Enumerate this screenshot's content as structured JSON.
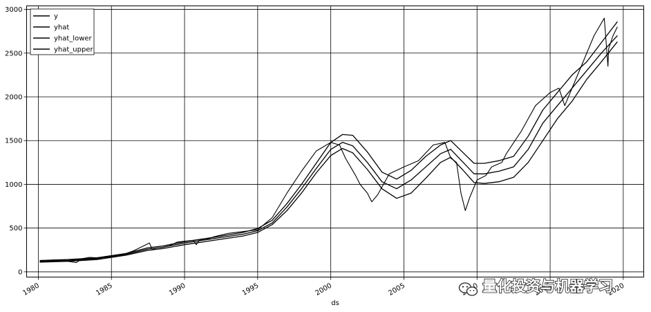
{
  "chart_data": {
    "type": "line",
    "xlabel": "ds",
    "ylabel": "",
    "xlim": [
      1979.2,
      2021.4
    ],
    "ylim": [
      -60,
      3040
    ],
    "x_ticks": [
      1980,
      1985,
      1990,
      1995,
      2000,
      2005,
      2010,
      2015,
      2020
    ],
    "x_tick_labels": [
      "1980",
      "1985",
      "1990",
      "1995",
      "2000",
      "2005",
      "2010",
      "2015",
      "2020"
    ],
    "y_ticks": [
      0,
      500,
      1000,
      1500,
      2000,
      2500,
      3000
    ],
    "y_tick_labels": [
      "0",
      "500",
      "1000",
      "1500",
      "2000",
      "2500",
      "3000"
    ],
    "grid": true,
    "legend": {
      "position": "top-left",
      "entries": [
        "y",
        "yhat",
        "yhat_lower",
        "yhat_upper"
      ]
    },
    "series": [
      {
        "name": "y",
        "x": [
          1980.1,
          1980.5,
          1981.0,
          1981.6,
          1982.0,
          1982.6,
          1983.0,
          1983.5,
          1984.0,
          1984.6,
          1985.0,
          1985.5,
          1986.0,
          1986.5,
          1987.0,
          1987.6,
          1987.8,
          1988.0,
          1988.5,
          1989.0,
          1989.5,
          1990.0,
          1990.6,
          1990.8,
          1991.0,
          1991.5,
          1992.0,
          1993.0,
          1994.0,
          1995.0,
          1996.0,
          1997.0,
          1998.0,
          1999.0,
          2000.0,
          2000.6,
          2001.0,
          2001.7,
          2002.0,
          2002.5,
          2002.8,
          2003.2,
          2004.0,
          2005.0,
          2006.0,
          2007.0,
          2007.8,
          2008.2,
          2008.6,
          2008.9,
          2009.2,
          2009.5,
          2010.0,
          2010.6,
          2011.0,
          2011.7,
          2012.0,
          2013.0,
          2014.0,
          2015.0,
          2015.6,
          2016.0,
          2016.5,
          2017.0,
          2018.0,
          2018.7,
          2018.95,
          2019.0,
          2019.3,
          2019.6
        ],
        "y": [
          110,
          120,
          135,
          130,
          120,
          105,
          150,
          165,
          160,
          170,
          165,
          180,
          210,
          240,
          280,
          330,
          250,
          270,
          280,
          300,
          340,
          350,
          360,
          310,
          360,
          370,
          400,
          440,
          460,
          480,
          620,
          900,
          1150,
          1380,
          1480,
          1450,
          1300,
          1100,
          1000,
          900,
          800,
          880,
          1120,
          1200,
          1270,
          1450,
          1480,
          1300,
          1250,
          900,
          700,
          850,
          1050,
          1100,
          1200,
          1250,
          1350,
          1600,
          1900,
          2050,
          2100,
          1900,
          2100,
          2300,
          2700,
          2900,
          2350,
          2550,
          2700,
          2800
        ]
      },
      {
        "name": "yhat",
        "x": [
          1980.1,
          1982,
          1984,
          1986,
          1987.5,
          1988.5,
          1990,
          1992,
          1994,
          1995,
          1996,
          1997,
          1998,
          1999,
          2000,
          2000.8,
          2001.5,
          2002.5,
          2003.5,
          2004.5,
          2005.5,
          2006.5,
          2007.5,
          2008.2,
          2009,
          2009.8,
          2010.5,
          2011.5,
          2012.5,
          2013.5,
          2014.5,
          2015.5,
          2016.5,
          2017.5,
          2018.5,
          2019.6
        ],
        "y": [
          120,
          130,
          150,
          200,
          260,
          280,
          330,
          380,
          430,
          470,
          560,
          740,
          950,
          1180,
          1400,
          1480,
          1440,
          1250,
          1030,
          950,
          1050,
          1200,
          1350,
          1400,
          1260,
          1120,
          1120,
          1150,
          1200,
          1400,
          1700,
          1900,
          2100,
          2300,
          2500,
          2700
        ]
      },
      {
        "name": "yhat_lower",
        "x": [
          1980.1,
          1982,
          1984,
          1986,
          1987.5,
          1988.5,
          1990,
          1992,
          1994,
          1995,
          1996,
          1997,
          1998,
          1999,
          2000,
          2000.8,
          2001.5,
          2002.5,
          2003.5,
          2004.5,
          2005.5,
          2006.5,
          2007.5,
          2008.2,
          2009,
          2009.8,
          2010.5,
          2011.5,
          2012.5,
          2013.5,
          2014.5,
          2015.5,
          2016.5,
          2017.5,
          2018.5,
          2019.6
        ],
        "y": [
          110,
          120,
          140,
          190,
          245,
          265,
          310,
          360,
          410,
          450,
          540,
          700,
          900,
          1130,
          1330,
          1410,
          1360,
          1170,
          950,
          840,
          900,
          1070,
          1250,
          1310,
          1170,
          1020,
          1010,
          1030,
          1080,
          1250,
          1500,
          1750,
          1950,
          2200,
          2400,
          2630
        ]
      },
      {
        "name": "yhat_upper",
        "x": [
          1980.1,
          1982,
          1984,
          1986,
          1987.5,
          1988.5,
          1990,
          1992,
          1994,
          1995,
          1996,
          1997,
          1998,
          1999,
          2000,
          2000.8,
          2001.5,
          2002.5,
          2003.5,
          2004.5,
          2005.5,
          2006.5,
          2007.5,
          2008.2,
          2009,
          2009.8,
          2010.5,
          2011.5,
          2012.5,
          2013.5,
          2014.5,
          2015.5,
          2016.5,
          2017.5,
          2018.5,
          2019.6
        ],
        "y": [
          130,
          140,
          160,
          210,
          275,
          295,
          345,
          395,
          450,
          495,
          590,
          780,
          1000,
          1240,
          1480,
          1570,
          1560,
          1370,
          1140,
          1060,
          1160,
          1320,
          1450,
          1500,
          1370,
          1240,
          1240,
          1270,
          1320,
          1550,
          1850,
          2050,
          2250,
          2400,
          2620,
          2860
        ]
      }
    ]
  },
  "watermark": {
    "text": "量化投资与机器学习",
    "icon": "wechat-icon"
  }
}
